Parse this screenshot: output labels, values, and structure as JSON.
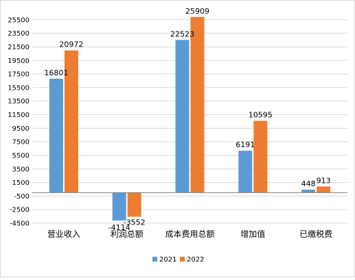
{
  "chart_data": {
    "type": "bar",
    "categories": [
      "营业收入",
      "利润总额",
      "成本费用总额",
      "增加值",
      "已缴税费"
    ],
    "series": [
      {
        "name": "2021",
        "color": "#5b9bd5",
        "values": [
          16801,
          -4114,
          22523,
          6191,
          448
        ]
      },
      {
        "name": "2022",
        "color": "#ed7d31",
        "values": [
          20972,
          -3552,
          25909,
          10595,
          913
        ]
      }
    ],
    "y_ticks": [
      -4500,
      -2500,
      -500,
      1500,
      3500,
      5500,
      7500,
      9500,
      11500,
      13500,
      15500,
      17500,
      19500,
      21500,
      23500,
      25500
    ],
    "ylim": [
      -4500,
      27500
    ],
    "grid": true,
    "legend": "bottom",
    "title": "",
    "xlabel": "",
    "ylabel": ""
  }
}
